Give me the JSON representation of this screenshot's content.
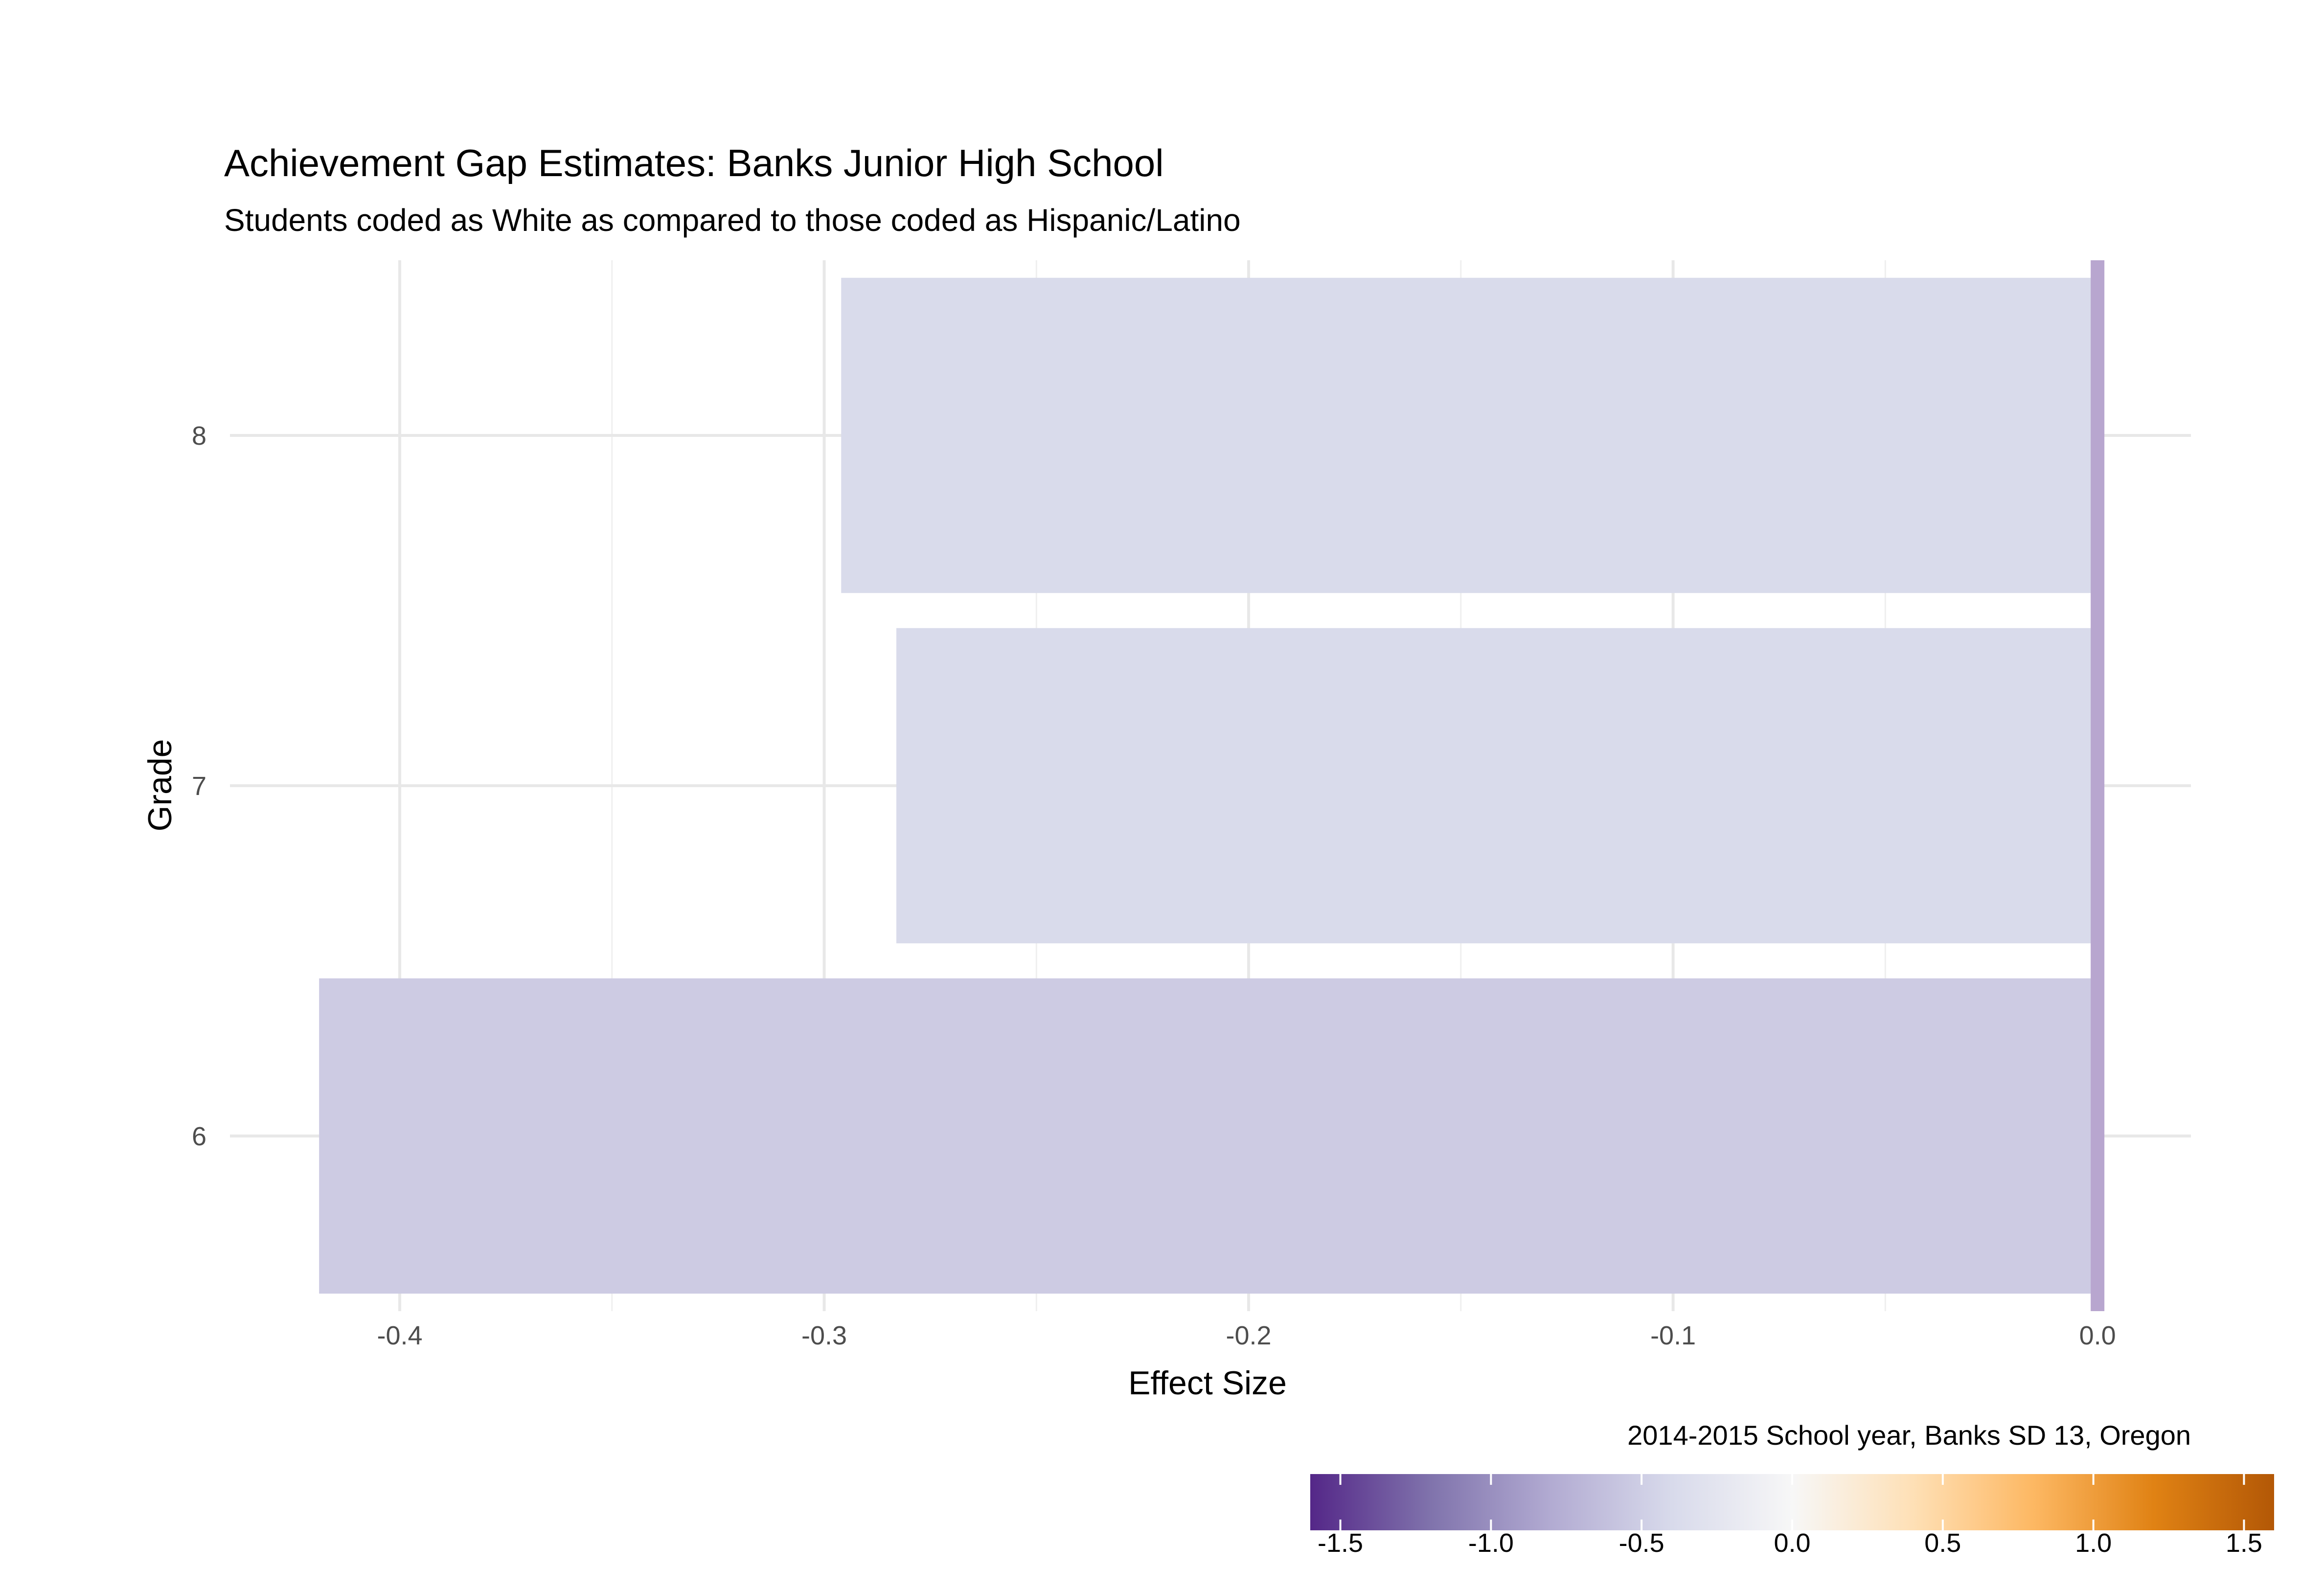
{
  "chart_data": {
    "type": "bar",
    "orientation": "horizontal",
    "title": "Achievement Gap Estimates: Banks Junior High School",
    "subtitle": "Students coded as White as compared to those coded as Hispanic/Latino",
    "xlabel": "Effect Size",
    "ylabel": "Grade",
    "caption": "2014-2015 School year, Banks SD 13, Oregon",
    "categories": [
      "6",
      "7",
      "8"
    ],
    "values": [
      -0.419,
      -0.283,
      -0.296
    ],
    "bar_colors": [
      "#cdcbe3",
      "#d9dbeb",
      "#d9dbeb"
    ],
    "xlim": [
      -0.44,
      0.022
    ],
    "x_ticks": [
      -0.4,
      -0.3,
      -0.2,
      -0.1,
      0.0
    ],
    "x_tick_labels": [
      "-0.4",
      "-0.3",
      "-0.2",
      "-0.1",
      "0.0"
    ],
    "reference_line": {
      "x": 0.0,
      "color": "#b8a6cf"
    },
    "grid": true,
    "legend": {
      "type": "colorbar",
      "position": "bottom-right",
      "range": [
        -1.6,
        1.6
      ],
      "ticks": [
        -1.5,
        -1.0,
        -0.5,
        0.0,
        0.5,
        1.0,
        1.5
      ],
      "tick_labels": [
        "-1.5",
        "-1.0",
        "-0.5",
        "0.0",
        "0.5",
        "1.0",
        "1.5"
      ],
      "colors": [
        "#542788",
        "#8073ac",
        "#b2abd2",
        "#d8daeb",
        "#f7f7f7",
        "#fee0b6",
        "#fdb863",
        "#e08214",
        "#b35806"
      ]
    }
  }
}
